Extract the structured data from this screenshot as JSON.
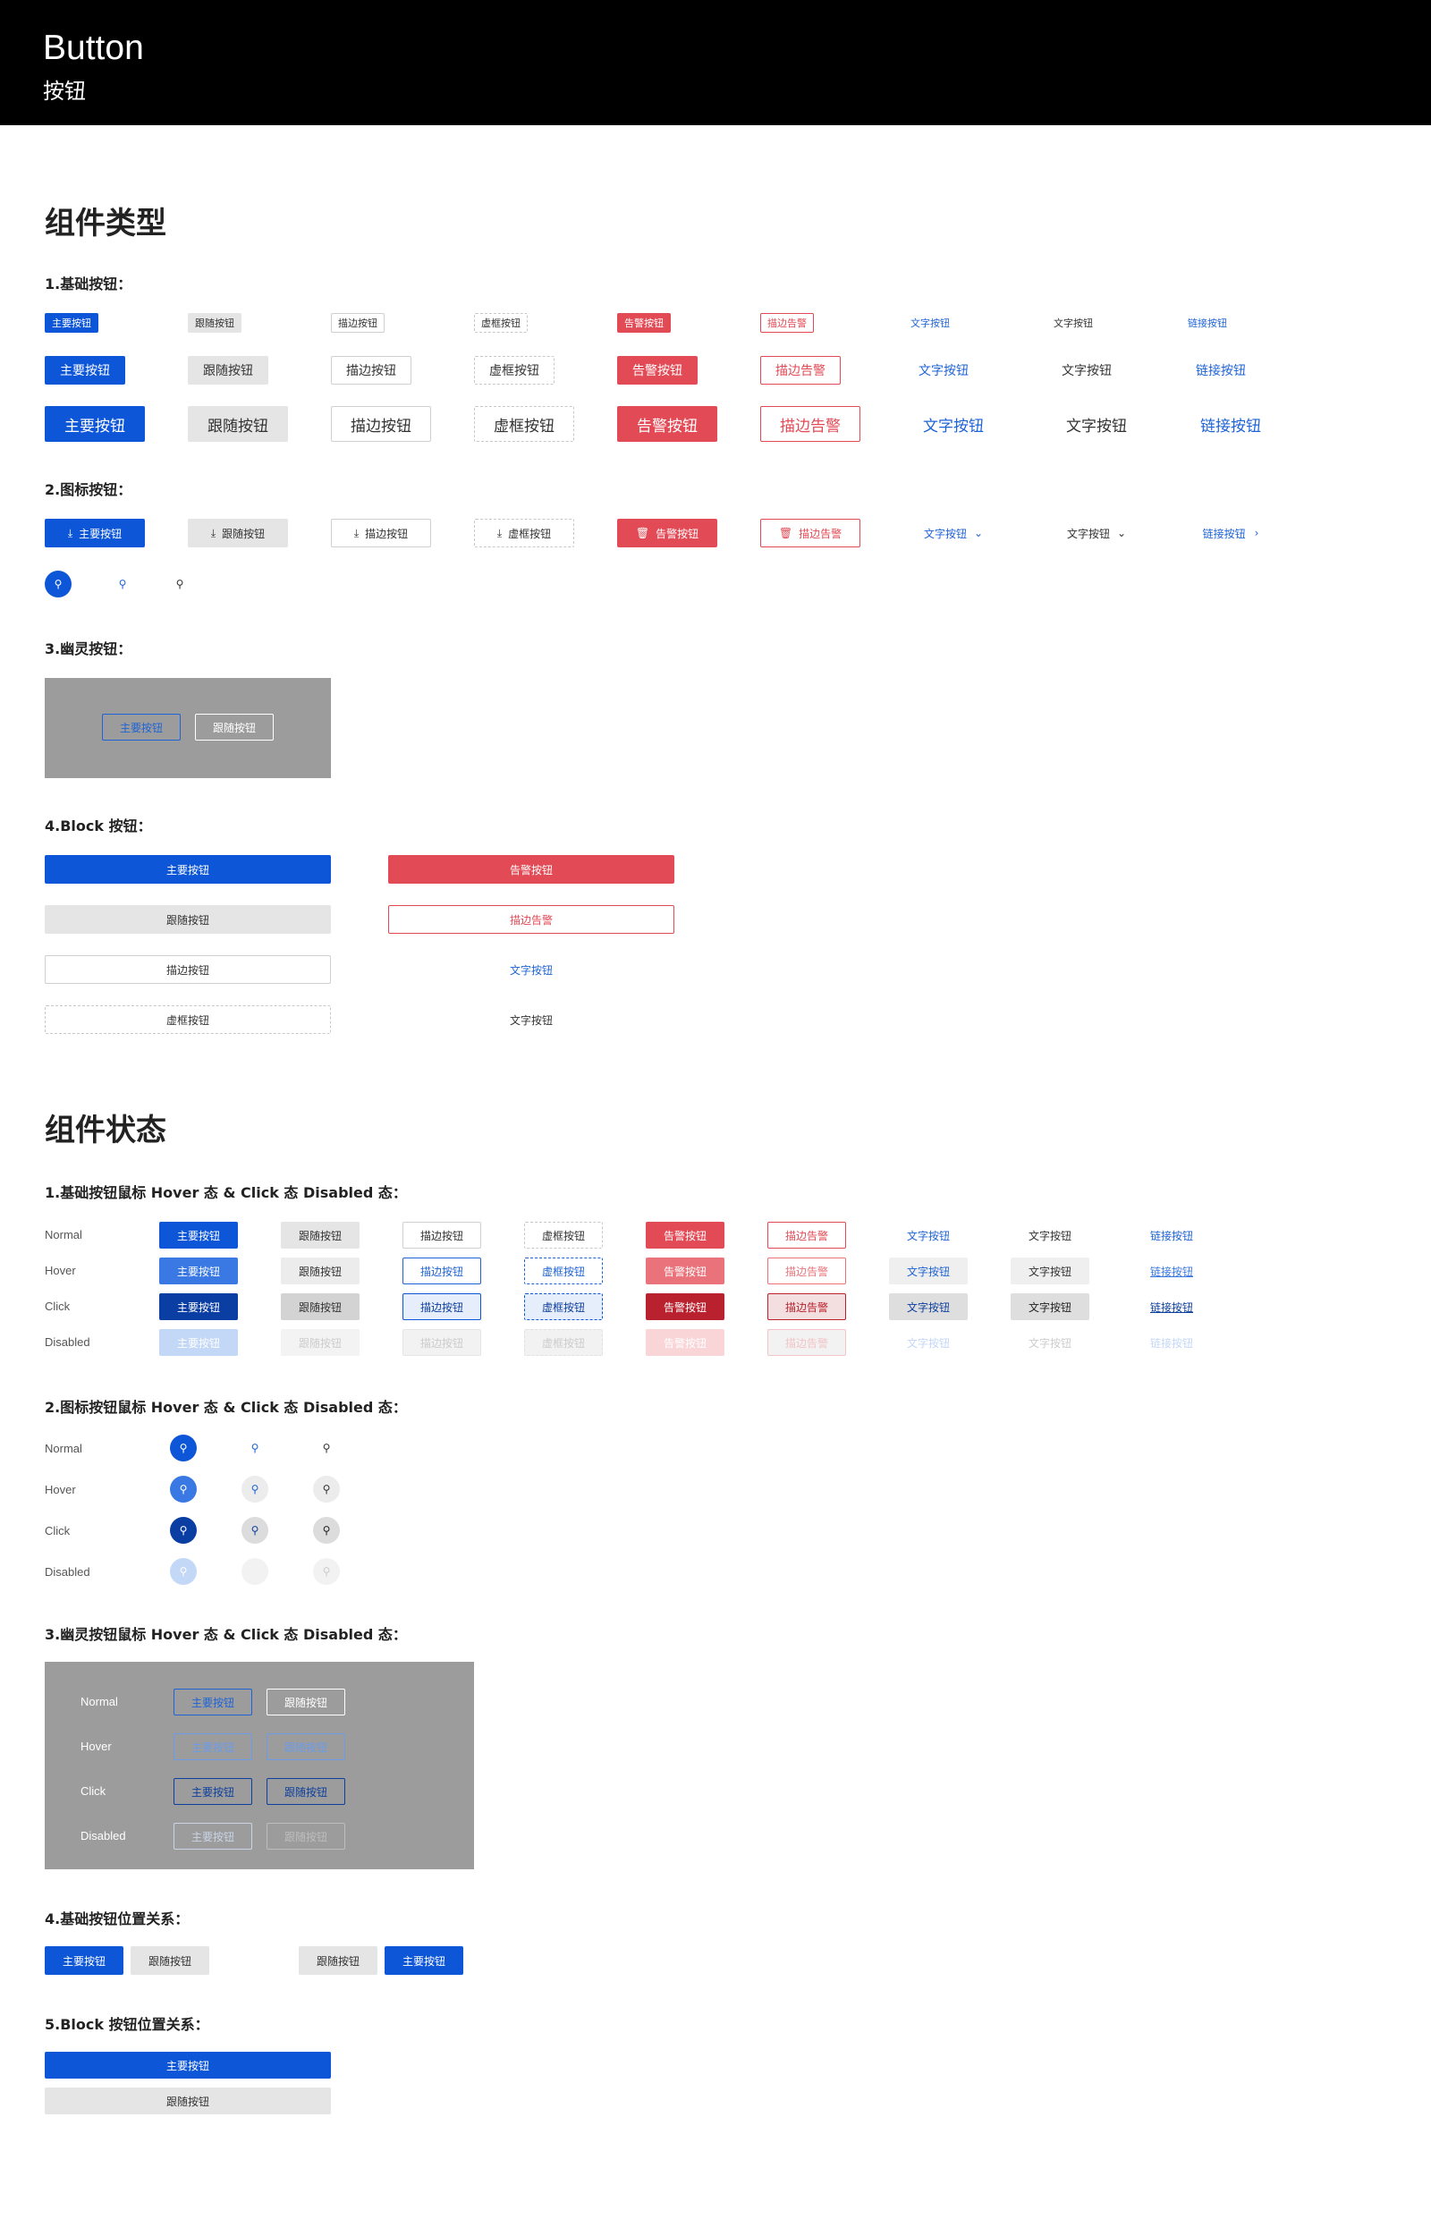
{
  "header": {
    "title": "Button",
    "subtitle": "按钮"
  },
  "sections": {
    "types": "组件类型",
    "states": "组件状态"
  },
  "subs": {
    "basic": "1.基础按钮：",
    "icon": "2.图标按钮：",
    "ghost": "3.幽灵按钮：",
    "block": "4.Block 按钮：",
    "basic_states": "1.基础按钮鼠标 Hover 态 & Click 态 Disabled 态：",
    "icon_states": "2.图标按钮鼠标 Hover 态 & Click 态 Disabled 态：",
    "ghost_states": "3.幽灵按钮鼠标 Hover 态 & Click 态 Disabled 态：",
    "basic_position": "4.基础按钮位置关系：",
    "block_position": "5.Block 按钮位置关系："
  },
  "labels": {
    "primary": "主要按钮",
    "secondary": "跟随按钮",
    "outline": "描边按钮",
    "dashed": "虚框按钮",
    "danger": "告警按钮",
    "danger_outline": "描边告警",
    "text": "文字按钮",
    "link": "链接按钮"
  },
  "states": {
    "normal": "Normal",
    "hover": "Hover",
    "click": "Click",
    "disabled": "Disabled"
  },
  "icons": {
    "download": "download-icon",
    "trash": "trash-icon",
    "search": "search-icon",
    "chevron_down": "chevron-down-icon",
    "chevron_right": "chevron-right-icon"
  },
  "colors": {
    "primary": "#0d56d8",
    "secondary": "#e5e5e5",
    "danger": "#e24a55",
    "text": "#1e63d6",
    "header": "#000000",
    "ghost_bg": "#9c9c9c"
  }
}
